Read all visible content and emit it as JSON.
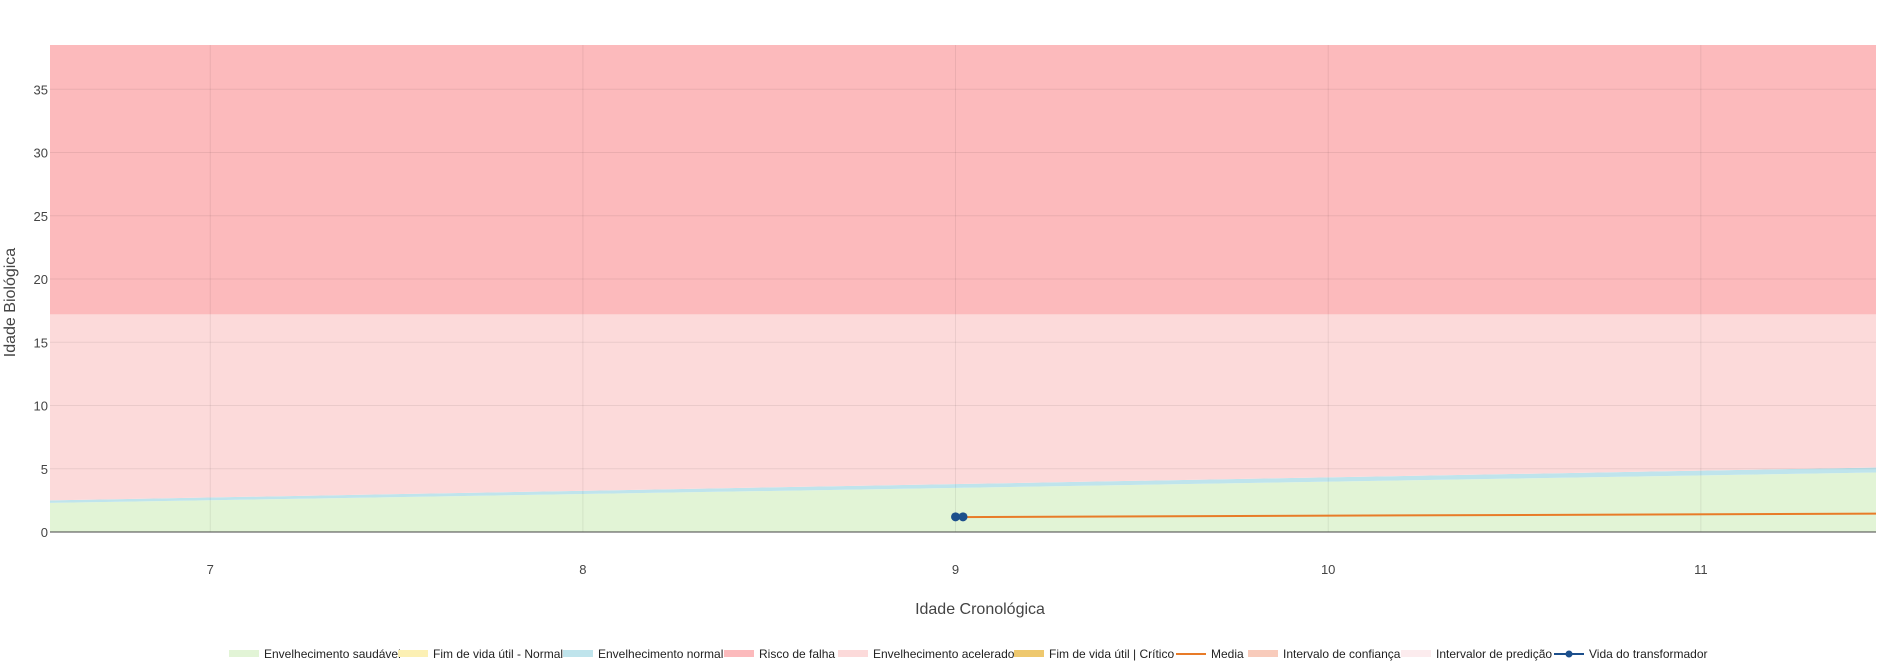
{
  "chart_data": {
    "type": "area",
    "xlabel": "Idade Cronológica",
    "ylabel": "Idade Biológica",
    "xlim": [
      6.57,
      11.47
    ],
    "ylim": [
      0,
      38.5
    ],
    "xticks": [
      7,
      8,
      9,
      10,
      11
    ],
    "yticks": [
      0,
      5,
      10,
      15,
      20,
      25,
      30,
      35
    ],
    "grid": true,
    "legend_position": "bottom",
    "bands": [
      {
        "name": "Envelhecimento saudável",
        "color": "#e2f4d6",
        "lower": [
          [
            6.57,
            0
          ],
          [
            11.47,
            0
          ]
        ],
        "upper": [
          [
            6.57,
            2.3
          ],
          [
            11.47,
            4.7
          ]
        ]
      },
      {
        "name": "Fim de vida útil - Normal",
        "color": "#fcf0b4",
        "lower": [
          [
            6.57,
            2.3
          ],
          [
            11.47,
            4.7
          ]
        ],
        "upper": [
          [
            6.57,
            2.3
          ],
          [
            11.47,
            4.7
          ]
        ]
      },
      {
        "name": "Envelhecimento normal",
        "color": "#bfe4ec",
        "lower": [
          [
            6.57,
            2.3
          ],
          [
            11.47,
            4.7
          ]
        ],
        "upper": [
          [
            6.57,
            2.5
          ],
          [
            11.47,
            5.1
          ]
        ]
      },
      {
        "name": "Envelhecimento acelerado",
        "color": "#fcdada",
        "lower": [
          [
            6.57,
            2.5
          ],
          [
            11.47,
            5.1
          ]
        ],
        "upper": [
          [
            6.57,
            17.2
          ],
          [
            11.47,
            17.2
          ]
        ]
      },
      {
        "name": "Risco de falha",
        "color": "#fcbabc",
        "lower": [
          [
            6.57,
            17.2
          ],
          [
            11.47,
            17.2
          ]
        ],
        "upper": [
          [
            6.57,
            38.5
          ],
          [
            11.47,
            38.5
          ]
        ]
      }
    ],
    "series": [
      {
        "name": "Media",
        "color": "#e87b28",
        "type": "line",
        "x": [
          9.0,
          11.47
        ],
        "y": [
          1.18,
          1.45
        ]
      },
      {
        "name": "Vida do transformador",
        "color": "#1c4f8c",
        "type": "line+markers",
        "x": [
          9.0,
          9.02
        ],
        "y": [
          1.2,
          1.2
        ]
      }
    ],
    "legend": [
      {
        "name": "Envelhecimento saudável",
        "color": "#e2f4d6",
        "kind": "fill"
      },
      {
        "name": "Fim de vida útil - Normal",
        "color": "#fcf0b4",
        "kind": "fill"
      },
      {
        "name": "Envelhecimento normal",
        "color": "#bfe4ec",
        "kind": "fill"
      },
      {
        "name": "Risco de falha",
        "color": "#fcbabc",
        "kind": "fill"
      },
      {
        "name": "Envelhecimento acelerado",
        "color": "#fcdada",
        "kind": "fill"
      },
      {
        "name": "Fim de vida útil | Crítico",
        "color": "#eec86e",
        "kind": "fill"
      },
      {
        "name": "Media",
        "color": "#e87b28",
        "kind": "line"
      },
      {
        "name": "Intervalo de confiança",
        "color": "#f8cbbb",
        "kind": "fill"
      },
      {
        "name": "Intervalor de predição",
        "color": "#fcecee",
        "kind": "fill"
      },
      {
        "name": "Vida do transformador",
        "color": "#1c4f8c",
        "kind": "line+markers"
      }
    ]
  }
}
